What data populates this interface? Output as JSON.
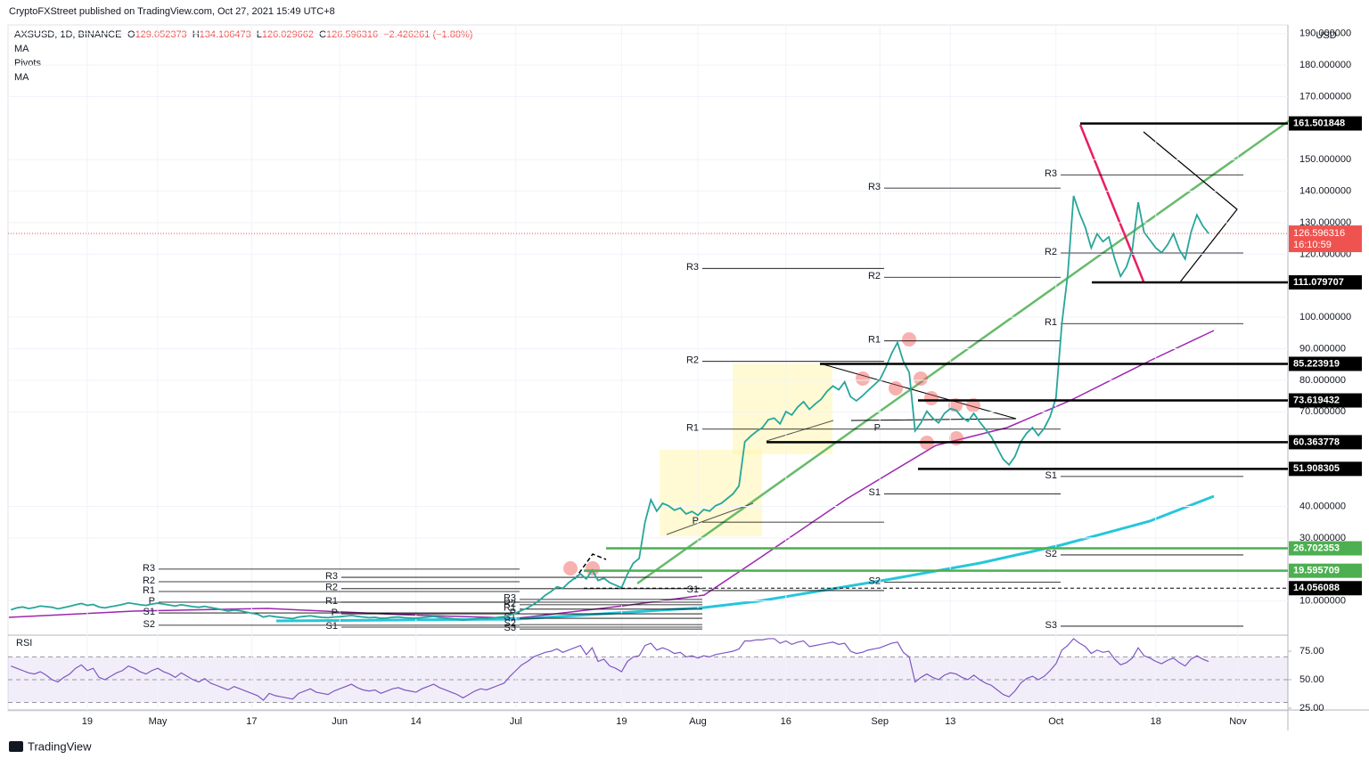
{
  "header": {
    "publisher": "CryptoFXStreet published on TradingView.com, Oct 27, 2021 15:49 UTC+8",
    "footer": "TradingView"
  },
  "chart_data": {
    "type": "line",
    "symbol": "AXSUSD, 1D, BINANCE",
    "ohlc": [
      {
        "label": "O",
        "value": 129.052373
      },
      {
        "label": "H",
        "value": 134.106473
      },
      {
        "label": "L",
        "value": 126.029662
      },
      {
        "label": "C",
        "value": 126.596316
      }
    ],
    "change": "−2.426261 (−1.88%)",
    "indicators": [
      "MA",
      "Pivots",
      "MA"
    ],
    "currency": "USD",
    "countdown": "16:10:59",
    "categories": [
      null,
      null,
      null,
      null,
      null,
      null,
      null,
      null,
      null,
      null,
      null,
      null,
      null,
      "19",
      null,
      null,
      null,
      null,
      null,
      null,
      null,
      null,
      null,
      null,
      null,
      "May",
      null,
      null,
      null,
      null,
      null,
      null,
      null,
      null,
      null,
      null,
      null,
      null,
      null,
      null,
      null,
      "17",
      null,
      null,
      null,
      null,
      null,
      null,
      null,
      null,
      null,
      null,
      null,
      null,
      null,
      null,
      "Jun",
      null,
      null,
      null,
      null,
      null,
      null,
      null,
      null,
      null,
      null,
      null,
      null,
      "14",
      null,
      null,
      null,
      null,
      null,
      null,
      null,
      null,
      null,
      null,
      null,
      null,
      null,
      null,
      null,
      null,
      "Jul",
      null,
      null,
      null,
      null,
      null,
      null,
      null,
      null,
      null,
      null,
      null,
      null,
      null,
      null,
      null,
      null,
      null,
      "19",
      null,
      null,
      null,
      null,
      null,
      null,
      null,
      null,
      null,
      null,
      null,
      null,
      "Aug",
      null,
      null,
      null,
      null,
      null,
      null,
      null,
      null,
      null,
      null,
      null,
      null,
      null,
      null,
      "16",
      null,
      null,
      null,
      null,
      null,
      null,
      null,
      null,
      null,
      null,
      null,
      null,
      null,
      null,
      null,
      "Sep",
      null,
      null,
      null,
      null,
      null,
      null,
      null,
      null,
      null,
      null,
      null,
      "13",
      null,
      null,
      null,
      null,
      null,
      null,
      null,
      null,
      null,
      null,
      null,
      null,
      null,
      null,
      null,
      null,
      null,
      "Oct",
      null,
      null,
      null,
      null,
      null,
      null,
      null,
      null,
      null,
      null,
      null,
      null,
      null,
      null,
      null,
      null,
      "18",
      null,
      null,
      null,
      null,
      null,
      null,
      null,
      null,
      null,
      null,
      null,
      null,
      null,
      "Nov",
      null,
      null,
      null,
      null,
      null,
      null,
      null,
      null
    ],
    "series": [
      {
        "color": "#26a69a",
        "values": [
          7.2,
          7.8,
          8.1,
          7.6,
          7.9,
          8.4,
          8.2,
          8.0,
          7.5,
          7.9,
          8.3,
          8.8,
          9.2,
          8.6,
          8.9,
          8.1,
          7.8,
          8.2,
          8.5,
          8.9,
          9.4,
          9.1,
          8.8,
          8.6,
          9.0,
          9.3,
          9.0,
          8.7,
          8.4,
          8.8,
          8.5,
          8.2,
          8.0,
          8.3,
          7.9,
          7.6,
          7.2,
          6.8,
          7.1,
          6.9,
          6.5,
          6.1,
          5.8,
          4.9,
          5.3,
          5.0,
          4.8,
          4.6,
          4.4,
          4.9,
          5.1,
          5.3,
          5.0,
          4.8,
          4.7,
          4.9,
          5.0,
          5.2,
          5.4,
          5.1,
          4.9,
          4.7,
          4.8,
          4.5,
          4.6,
          4.8,
          4.9,
          4.7,
          4.6,
          4.5,
          4.7,
          4.9,
          5.1,
          4.8,
          4.6,
          4.4,
          4.2,
          3.9,
          4.1,
          4.3,
          4.5,
          4.4,
          4.6,
          4.8,
          5.0,
          5.6,
          6.2,
          7.0,
          7.8,
          8.9,
          10.2,
          11.8,
          13.0,
          14.5,
          14.0,
          15.8,
          17.2,
          18.6,
          17.0,
          19.8,
          16.5,
          17.2,
          15.8,
          15.0,
          14.2,
          18.5,
          22.0,
          23.5,
          35.0,
          42.1,
          38.5,
          41.0,
          40.2,
          38.8,
          39.5,
          37.6,
          38.4,
          37.2,
          39.0,
          38.5,
          40.2,
          41.0,
          42.5,
          44.0,
          46.5,
          60.5,
          62.3,
          63.8,
          65.0,
          67.5,
          68.0,
          66.2,
          70.1,
          69.0,
          71.5,
          73.2,
          70.8,
          72.5,
          74.0,
          76.5,
          78.2,
          77.0,
          79.5,
          74.8,
          73.5,
          75.0,
          76.8,
          78.5,
          80.2,
          84.0,
          88.5,
          92.0,
          86.0,
          82.5,
          64.0,
          66.5,
          70.2,
          68.0,
          66.5,
          69.5,
          71.0,
          70.5,
          68.2,
          67.0,
          69.5,
          66.8,
          64.5,
          62.0,
          58.5,
          55.0,
          53.2,
          55.8,
          60.5,
          63.2,
          65.0,
          62.5,
          64.8,
          68.5,
          74.5,
          98.0,
          113.5,
          138.5,
          133.0,
          128.5,
          122.0,
          126.5,
          124.0,
          125.5,
          118.5,
          113.0,
          116.0,
          121.5,
          136.5,
          127.0,
          124.5,
          122.0,
          120.5,
          123.0,
          126.5,
          121.5,
          118.5,
          127.0,
          132.5,
          129.0,
          126.596316,
          null,
          null,
          null,
          null,
          null,
          null,
          null,
          null,
          null,
          null,
          null,
          null,
          null
        ]
      }
    ],
    "ylim": [
      -0.85,
      192.75
    ],
    "yticks": [
      {
        "value": 190,
        "label": "190.000000"
      },
      {
        "value": 180,
        "label": "180.000000"
      },
      {
        "value": 170,
        "label": "170.000000"
      },
      {
        "value": 150,
        "label": "150.000000"
      },
      {
        "value": 140,
        "label": "140.000000"
      },
      {
        "value": 130,
        "label": "130.000000"
      },
      {
        "value": 120,
        "label": "120.000000"
      },
      {
        "value": 100,
        "label": "100.000000"
      },
      {
        "value": 90,
        "label": "90.000000"
      },
      {
        "value": 80,
        "label": "80.000000"
      },
      {
        "value": 70,
        "label": "70.000000"
      },
      {
        "value": 40,
        "label": "40.000000"
      },
      {
        "value": 30,
        "label": "30.000000"
      },
      {
        "value": 10,
        "label": "10.000000"
      }
    ],
    "levels": [
      {
        "value": 161.501848,
        "color": "#000000",
        "dashed": false
      },
      {
        "value": 111.079707,
        "color": "#000000",
        "dashed": false
      },
      {
        "value": 85.223919,
        "color": "#000000",
        "dashed": false
      },
      {
        "value": 73.619432,
        "color": "#000000",
        "dashed": false
      },
      {
        "value": 60.363778,
        "color": "#000000",
        "dashed": false
      },
      {
        "value": 51.908305,
        "color": "#000000",
        "dashed": false
      },
      {
        "value": 26.702353,
        "color": "#4caf50",
        "dashed": false
      },
      {
        "value": 19.595709,
        "color": "#4caf50",
        "dashed": false
      },
      {
        "value": 14.056088,
        "color": "#000000",
        "dashed": true
      }
    ],
    "pivots": [
      {
        "labels": [
          "R3",
          "R2",
          "R1",
          "P",
          "S1",
          "S2"
        ],
        "values": [
          20.1,
          16.1,
          13,
          9.6,
          6.2,
          2.3
        ]
      },
      {
        "labels": [
          "R3",
          "R2",
          "R1",
          "P",
          "S1"
        ],
        "values": [
          17.5,
          13.9,
          9.6,
          5.9,
          1.7
        ]
      },
      {
        "labels": [
          "R3",
          "R2",
          "R1",
          "P",
          "S1",
          "S2",
          "S3"
        ],
        "values": [
          10.5,
          8.8,
          7.4,
          5.9,
          4.5,
          2.5,
          1.1
        ]
      },
      {
        "labels": [
          "R3",
          "R2",
          "R1",
          "P",
          "S1"
        ],
        "values": [
          115.5,
          86,
          64.5,
          35,
          13.3
        ]
      },
      {
        "labels": [
          "R3",
          "R2",
          "R1",
          "P",
          "S1",
          "S2"
        ],
        "values": [
          141,
          112.7,
          92.5,
          64.5,
          44,
          16
        ]
      },
      {
        "labels": [
          "R3",
          "R2",
          "R1",
          "S1",
          "S2",
          "S3"
        ],
        "values": [
          145.2,
          120.4,
          98,
          49.5,
          24.6,
          2
        ]
      }
    ],
    "rsi": {
      "title": "RSI",
      "color": "#7e57c2",
      "ylim": [
        23.4,
        88.3
      ],
      "bands": [
        30,
        50,
        70
      ],
      "yticks": [
        {
          "value": 75,
          "label": "75.00"
        },
        {
          "value": 50,
          "label": "50.00"
        },
        {
          "value": 25,
          "label": "25.00"
        }
      ],
      "values": [
        62,
        60,
        58,
        56,
        55,
        57,
        54,
        50,
        48,
        52,
        55,
        60,
        63,
        58,
        60,
        52,
        50,
        53,
        56,
        58,
        62,
        60,
        57,
        55,
        58,
        60,
        57,
        55,
        52,
        56,
        53,
        50,
        48,
        51,
        47,
        45,
        43,
        41,
        44,
        42,
        40,
        38,
        36,
        32,
        38,
        36,
        35,
        34,
        33,
        38,
        40,
        42,
        39,
        38,
        37,
        40,
        42,
        44,
        46,
        43,
        41,
        40,
        41,
        38,
        40,
        42,
        43,
        41,
        40,
        39,
        42,
        44,
        46,
        43,
        41,
        39,
        37,
        34,
        37,
        40,
        42,
        41,
        43,
        45,
        47,
        53,
        58,
        63,
        66,
        70,
        72,
        74,
        75,
        77,
        74,
        76,
        78,
        80,
        72,
        78,
        66,
        68,
        62,
        60,
        57,
        66,
        70,
        71,
        80,
        82,
        76,
        78,
        76,
        73,
        74,
        70,
        71,
        69,
        71,
        70,
        72,
        73,
        74,
        75,
        77,
        84,
        84,
        85,
        85,
        86,
        86,
        82,
        84,
        81,
        83,
        84,
        79,
        80,
        81,
        82,
        83,
        81,
        82,
        75,
        73,
        74,
        76,
        77,
        78,
        80,
        82,
        83,
        74,
        70,
        48,
        52,
        55,
        52,
        50,
        54,
        56,
        55,
        52,
        50,
        54,
        50,
        47,
        45,
        41,
        37,
        35,
        40,
        47,
        51,
        53,
        50,
        53,
        58,
        64,
        76,
        80,
        86,
        82,
        79,
        73,
        76,
        74,
        75,
        68,
        63,
        65,
        69,
        78,
        71,
        69,
        66,
        64,
        67,
        69,
        65,
        62,
        68,
        71,
        68,
        66,
        null,
        null,
        null,
        null,
        null,
        null,
        null,
        null,
        null,
        null,
        null,
        null,
        null
      ]
    }
  }
}
